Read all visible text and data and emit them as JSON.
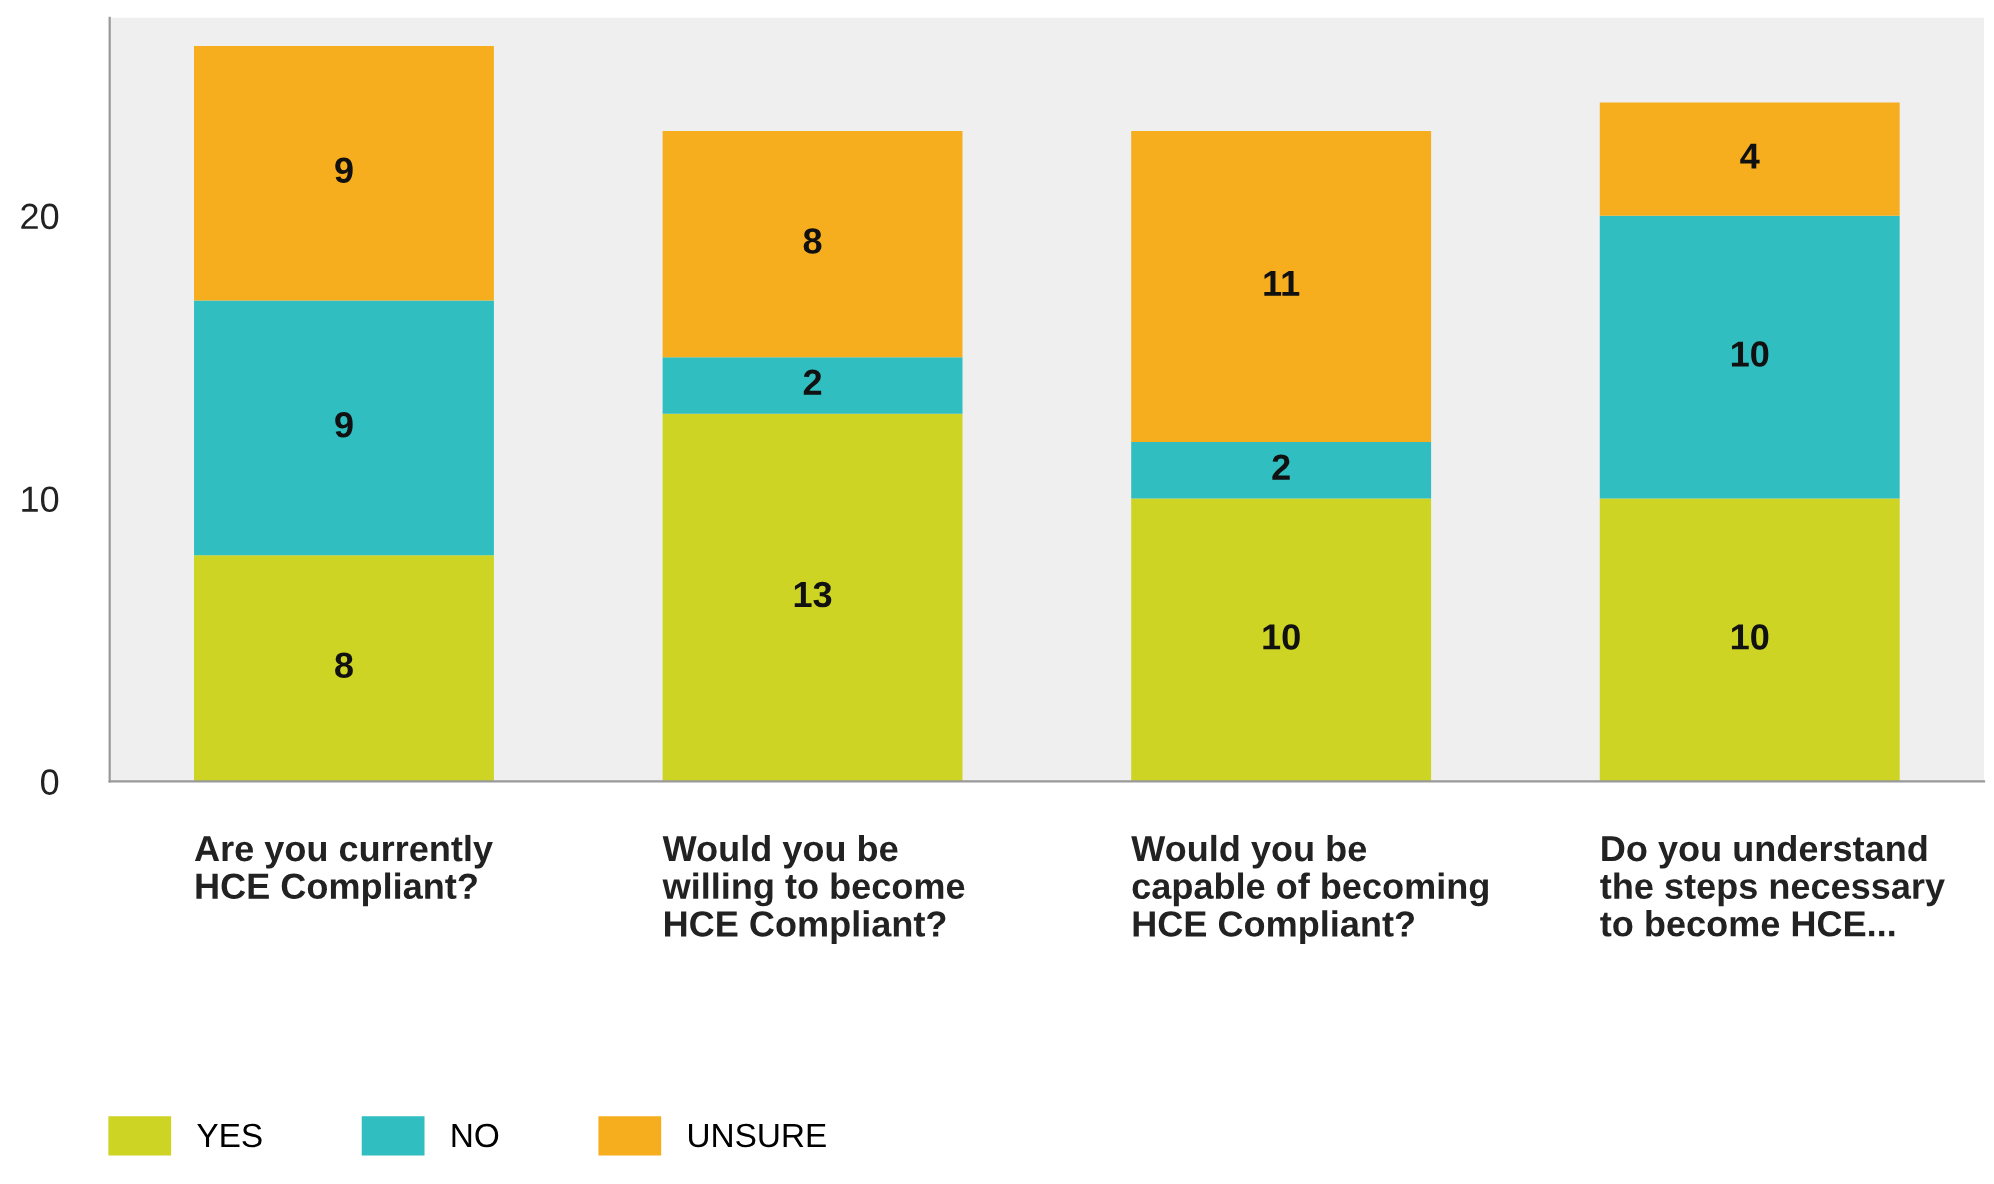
{
  "chart_data": {
    "type": "bar",
    "stacked": true,
    "categories": [
      "Are you currently HCE Compliant?",
      "Would you be willing to become HCE Compliant?",
      "Would you be capable of becoming HCE Compliant?",
      "Do you understand the steps necessary to become HCE..."
    ],
    "series": [
      {
        "name": "YES",
        "color": "#cdd424",
        "values": [
          8,
          13,
          10,
          10
        ]
      },
      {
        "name": "NO",
        "color": "#31bec0",
        "values": [
          9,
          2,
          2,
          10
        ]
      },
      {
        "name": "UNSURE",
        "color": "#f6ae1f",
        "values": [
          9,
          8,
          11,
          4
        ]
      }
    ],
    "ylim": [
      0,
      27
    ],
    "yticks": [
      0,
      10,
      20
    ],
    "data_labels": true,
    "legend": "bottom left",
    "grid": false
  }
}
